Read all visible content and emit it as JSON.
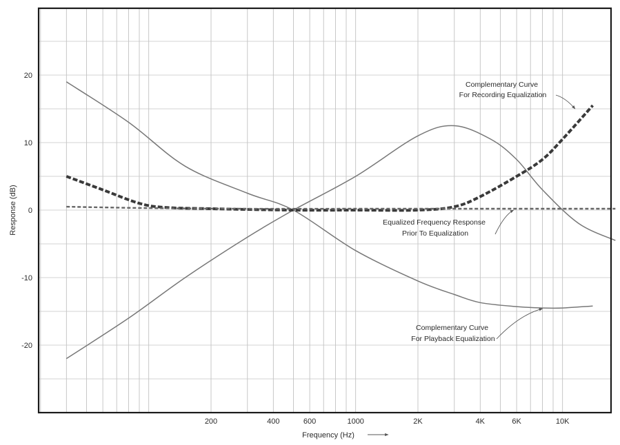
{
  "chart_data": {
    "type": "line",
    "title": "",
    "xlabel": "Frequency (Hz)",
    "ylabel": "Response (dB)",
    "xscale": "log",
    "xlim": [
      30,
      20000
    ],
    "ylim": [
      -30,
      30
    ],
    "xticks": [
      {
        "value": 200,
        "label": "200"
      },
      {
        "value": 400,
        "label": "400"
      },
      {
        "value": 600,
        "label": "600"
      },
      {
        "value": 1000,
        "label": "1000"
      },
      {
        "value": 2000,
        "label": "2K"
      },
      {
        "value": 4000,
        "label": "4K"
      },
      {
        "value": 6000,
        "label": "6K"
      },
      {
        "value": 10000,
        "label": "10K"
      }
    ],
    "yticks": [
      {
        "value": 20,
        "label": "20"
      },
      {
        "value": 10,
        "label": "10"
      },
      {
        "value": 0,
        "label": "0"
      },
      {
        "value": -10,
        "label": "-10"
      },
      {
        "value": -20,
        "label": "-20"
      }
    ],
    "grid": true,
    "series": [
      {
        "style": "solid",
        "x": [
          40,
          80,
          150,
          300,
          500,
          1000,
          2000,
          3000,
          4500,
          6000,
          8000,
          12000,
          18000
        ],
        "y": [
          -22,
          -16,
          -10,
          -4,
          0,
          5,
          11,
          12.5,
          10.5,
          7.5,
          3,
          -2,
          -4.5
        ]
      },
      {
        "style": "solid",
        "x": [
          40,
          80,
          150,
          300,
          500,
          1000,
          2000,
          3000,
          4000,
          6000,
          8000,
          10000,
          14000
        ],
        "y": [
          19,
          13,
          6.5,
          2.5,
          0,
          -6,
          -10.5,
          -12.5,
          -13.7,
          -14.3,
          -14.5,
          -14.5,
          -14.2
        ]
      },
      {
        "style": "heavy-dashed",
        "x": [
          40,
          60,
          90,
          120,
          200,
          500,
          1000,
          2000,
          3000,
          4000,
          6000,
          8000,
          10000,
          14000
        ],
        "y": [
          5,
          3,
          1,
          0.4,
          0.2,
          0,
          0,
          0,
          0.5,
          2,
          5,
          7.5,
          10.5,
          15.5
        ]
      },
      {
        "style": "light-dashed",
        "x": [
          40,
          100,
          300,
          1000,
          3000,
          10000,
          18000
        ],
        "y": [
          0.5,
          0.3,
          0.2,
          0.2,
          0.2,
          0.2,
          0.2
        ]
      }
    ],
    "annotations": [
      {
        "id": "rec",
        "lines": [
          "Complementary Curve",
          "For Recording Equalization"
        ],
        "point_to": {
          "x": 11500,
          "y": 15
        }
      },
      {
        "id": "eq",
        "lines": [
          "Equalized Frequency Response",
          "Prior To Equalization"
        ],
        "point_to": {
          "x": 5800,
          "y": 0
        }
      },
      {
        "id": "pb",
        "lines": [
          "Complementary Curve",
          "For Playback Equalization"
        ],
        "point_to": {
          "x": 8000,
          "y": -14.6
        }
      }
    ],
    "x_arrow": true
  }
}
